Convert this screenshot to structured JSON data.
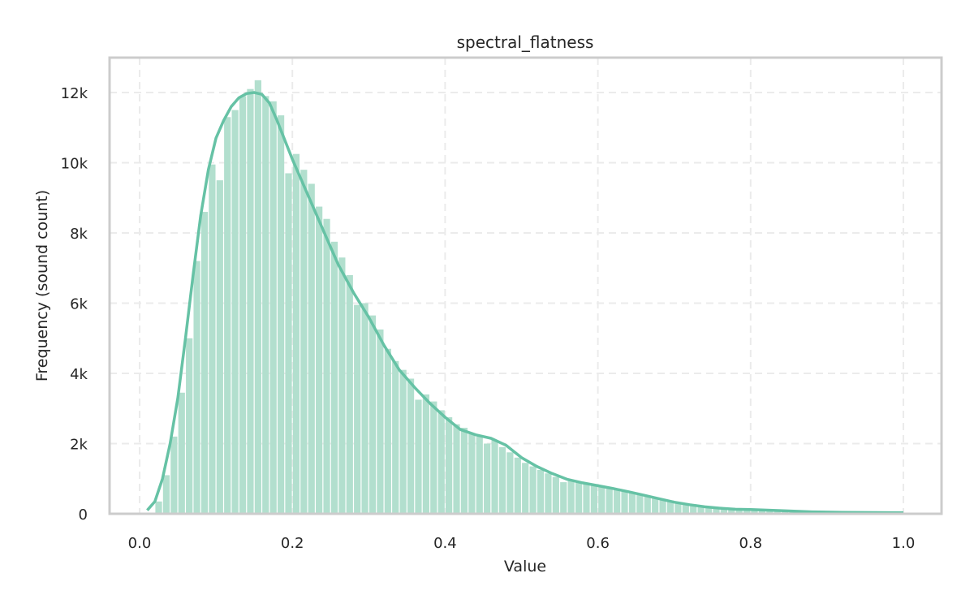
{
  "chart_data": {
    "type": "histogram",
    "title": "spectral_flatness",
    "xlabel": "Value",
    "ylabel": "Frequency (sound count)",
    "xlim": [
      -0.04,
      1.05
    ],
    "ylim": [
      0,
      13000
    ],
    "xticks": [
      0.0,
      0.2,
      0.4,
      0.6,
      0.8,
      1.0
    ],
    "xtick_labels": [
      "0.0",
      "0.2",
      "0.4",
      "0.6",
      "0.8",
      "1.0"
    ],
    "yticks": [
      0,
      2000,
      4000,
      6000,
      8000,
      10000,
      12000
    ],
    "ytick_labels": [
      "0",
      "2k",
      "4k",
      "6k",
      "8k",
      "10k",
      "12k"
    ],
    "grid": true,
    "bin_start": 0.02,
    "bin_width": 0.01,
    "counts": [
      350,
      1100,
      2200,
      3450,
      5000,
      7200,
      8600,
      9950,
      9500,
      11300,
      11500,
      11900,
      12100,
      12350,
      11900,
      11750,
      11350,
      9700,
      10250,
      9800,
      9400,
      8750,
      8400,
      7750,
      7300,
      6800,
      5950,
      6000,
      5650,
      5250,
      4700,
      4350,
      4100,
      3850,
      3250,
      3400,
      3200,
      2950,
      2750,
      2550,
      2450,
      2300,
      2200,
      2000,
      2100,
      1900,
      1750,
      1600,
      1450,
      1350,
      1250,
      1150,
      1050,
      900,
      950,
      900,
      850,
      800,
      770,
      730,
      700,
      650,
      600,
      550,
      500,
      450,
      400,
      380,
      330,
      300,
      270,
      240,
      200,
      180,
      160,
      140,
      120,
      110,
      100,
      95,
      90,
      80,
      75,
      70,
      60,
      55,
      50,
      45,
      40,
      38,
      35,
      33,
      30,
      30,
      28,
      26,
      25,
      24
    ],
    "kde": {
      "x": [
        0.01,
        0.02,
        0.03,
        0.04,
        0.05,
        0.06,
        0.07,
        0.08,
        0.09,
        0.1,
        0.11,
        0.12,
        0.13,
        0.14,
        0.15,
        0.16,
        0.17,
        0.18,
        0.2,
        0.22,
        0.24,
        0.26,
        0.28,
        0.3,
        0.32,
        0.34,
        0.36,
        0.38,
        0.4,
        0.42,
        0.44,
        0.46,
        0.48,
        0.5,
        0.52,
        0.54,
        0.56,
        0.58,
        0.6,
        0.62,
        0.64,
        0.66,
        0.68,
        0.7,
        0.72,
        0.74,
        0.76,
        0.78,
        0.8,
        0.84,
        0.88,
        0.92,
        0.96,
        1.0
      ],
      "y": [
        100,
        350,
        1000,
        2000,
        3300,
        5000,
        6800,
        8500,
        9800,
        10700,
        11200,
        11600,
        11850,
        11970,
        12000,
        11950,
        11700,
        11200,
        10100,
        9100,
        8100,
        7100,
        6300,
        5600,
        4800,
        4100,
        3600,
        3150,
        2750,
        2400,
        2250,
        2150,
        1950,
        1600,
        1350,
        1150,
        980,
        880,
        800,
        720,
        630,
        530,
        430,
        330,
        260,
        200,
        160,
        130,
        120,
        90,
        55,
        40,
        35,
        30
      ]
    },
    "colors": {
      "bars": "#b2dfce",
      "kde": "#66c2a5",
      "frame": "#cccccc",
      "grid": "#ebebeb"
    }
  }
}
